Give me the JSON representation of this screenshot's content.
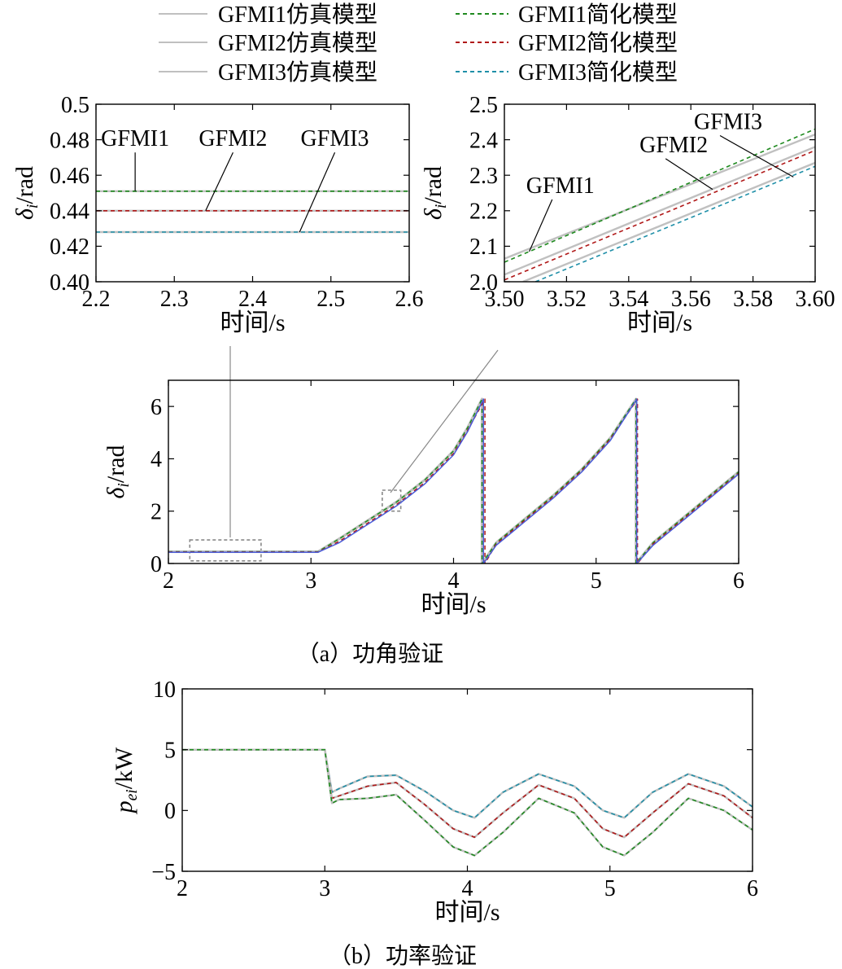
{
  "legend": [
    {
      "label": "GFMI1仿真模型",
      "style": "solid",
      "color": "#c0c0c0"
    },
    {
      "label": "GFMI1简化模型",
      "style": "dashed",
      "color": "#1f8a1f"
    },
    {
      "label": "GFMI2仿真模型",
      "style": "solid",
      "color": "#c0c0c0"
    },
    {
      "label": "GFMI2简化模型",
      "style": "dashed",
      "color": "#b01818"
    },
    {
      "label": "GFMI3仿真模型",
      "style": "solid",
      "color": "#c0c0c0"
    },
    {
      "label": "GFMI3简化模型",
      "style": "dashed",
      "color": "#1f8fa8"
    }
  ],
  "colors": {
    "sim": "#c0c0c0",
    "g1": "#1f8a1f",
    "g2": "#b01818",
    "g3": "#1f8fa8",
    "g3_main": "#4a5cd8"
  },
  "captions": {
    "a": "（a）功角验证",
    "b": "（b）功率验证"
  },
  "chart_data": [
    {
      "id": "zoom1",
      "type": "line",
      "xlabel": "时间/s",
      "ylabel_main": "δ",
      "ylabel_sub": "i",
      "ylabel_unit": "/rad",
      "xlim": [
        2.2,
        2.6
      ],
      "ylim": [
        0.4,
        0.5
      ],
      "xticks": [
        2.2,
        2.3,
        2.4,
        2.5,
        2.6
      ],
      "xtick_labels": [
        "2.2",
        "2.3",
        "2.4",
        "2.5",
        "2.6"
      ],
      "yticks": [
        0.4,
        0.42,
        0.44,
        0.46,
        0.48,
        0.5
      ],
      "ytick_labels": [
        "0.40",
        "0.42",
        "0.44",
        "0.46",
        "0.48",
        "0.5"
      ],
      "series": [
        {
          "x": [
            2.2,
            2.6
          ],
          "y": [
            0.451,
            0.451
          ],
          "color": "#c0c0c0",
          "dash": false
        },
        {
          "x": [
            2.2,
            2.6
          ],
          "y": [
            0.451,
            0.451
          ],
          "color": "#1f8a1f",
          "dash": true
        },
        {
          "x": [
            2.2,
            2.6
          ],
          "y": [
            0.44,
            0.44
          ],
          "color": "#c0c0c0",
          "dash": false
        },
        {
          "x": [
            2.2,
            2.6
          ],
          "y": [
            0.44,
            0.44
          ],
          "color": "#b01818",
          "dash": true
        },
        {
          "x": [
            2.2,
            2.6
          ],
          "y": [
            0.428,
            0.428
          ],
          "color": "#c0c0c0",
          "dash": false
        },
        {
          "x": [
            2.2,
            2.6
          ],
          "y": [
            0.428,
            0.428
          ],
          "color": "#1f8fa8",
          "dash": true
        }
      ],
      "annotations": [
        {
          "text": "GFMI1",
          "tx": 2.25,
          "ty": 0.4765,
          "ax": 2.25,
          "ay": 0.451
        },
        {
          "text": "GFMI2",
          "tx": 2.375,
          "ty": 0.4765,
          "ax": 2.34,
          "ay": 0.44
        },
        {
          "text": "GFMI3",
          "tx": 2.505,
          "ty": 0.4765,
          "ax": 2.46,
          "ay": 0.428
        }
      ]
    },
    {
      "id": "zoom2",
      "type": "line",
      "xlabel": "时间/s",
      "ylabel_main": "δ",
      "ylabel_sub": "i",
      "ylabel_unit": "/rad",
      "xlim": [
        3.5,
        3.6
      ],
      "ylim": [
        2.0,
        2.5
      ],
      "xticks": [
        3.5,
        3.52,
        3.54,
        3.56,
        3.58,
        3.6
      ],
      "xtick_labels": [
        "3.50",
        "3.52",
        "3.54",
        "3.56",
        "3.58",
        "3.60"
      ],
      "yticks": [
        2.0,
        2.1,
        2.2,
        2.3,
        2.4,
        2.5
      ],
      "ytick_labels": [
        "2.0",
        "2.1",
        "2.2",
        "2.3",
        "2.4",
        "2.5"
      ],
      "series": [
        {
          "x": [
            3.5,
            3.6
          ],
          "y": [
            2.065,
            2.415
          ],
          "color": "#c0c0c0",
          "dash": false
        },
        {
          "x": [
            3.5,
            3.6
          ],
          "y": [
            2.055,
            2.43
          ],
          "color": "#1f8a1f",
          "dash": true
        },
        {
          "x": [
            3.5,
            3.6
          ],
          "y": [
            2.02,
            2.38
          ],
          "color": "#c0c0c0",
          "dash": false
        },
        {
          "x": [
            3.5,
            3.6
          ],
          "y": [
            2.005,
            2.37
          ],
          "color": "#b01818",
          "dash": true
        },
        {
          "x": [
            3.506,
            3.6
          ],
          "y": [
            2.0,
            2.335
          ],
          "color": "#c0c0c0",
          "dash": false
        },
        {
          "x": [
            3.51,
            3.6
          ],
          "y": [
            2.0,
            2.325
          ],
          "color": "#1f8fa8",
          "dash": true
        }
      ],
      "annotations": [
        {
          "text": "GFMI1",
          "tx": 3.518,
          "ty": 2.25,
          "ax": 3.508,
          "ay": 2.085
        },
        {
          "text": "GFMI2",
          "tx": 3.5545,
          "ty": 2.365,
          "ax": 3.567,
          "ay": 2.26
        },
        {
          "text": "GFMI3",
          "tx": 3.572,
          "ty": 2.43,
          "ax": 3.593,
          "ay": 2.295
        }
      ]
    },
    {
      "id": "main_a",
      "type": "line",
      "xlabel": "时间/s",
      "ylabel_main": "δ",
      "ylabel_sub": "i",
      "ylabel_unit": "/rad",
      "xlim": [
        2,
        6
      ],
      "ylim": [
        0,
        7
      ],
      "xticks": [
        2,
        3,
        4,
        5,
        6
      ],
      "xtick_labels": [
        "2",
        "3",
        "4",
        "5",
        "6"
      ],
      "yticks": [
        0,
        2,
        4,
        6
      ],
      "ytick_labels": [
        "0",
        "2",
        "4",
        "6"
      ],
      "zoom_boxes": [
        {
          "x": [
            2.15,
            2.65
          ],
          "y": [
            0.1,
            0.9
          ]
        },
        {
          "x": [
            3.5,
            3.63
          ],
          "y": [
            2.0,
            2.8
          ]
        }
      ],
      "series": [
        {
          "x": [
            2,
            3.05,
            3.2,
            3.4,
            3.6,
            3.8,
            4.0,
            4.1,
            4.2,
            4.2,
            4.3,
            4.5,
            4.7,
            4.9,
            5.1,
            5.28,
            5.28,
            5.4,
            5.6,
            5.8,
            6.0
          ],
          "y": [
            0.45,
            0.45,
            0.95,
            1.65,
            2.35,
            3.2,
            4.3,
            5.2,
            6.28,
            0,
            0.8,
            1.7,
            2.6,
            3.6,
            4.8,
            6.28,
            0,
            0.8,
            1.7,
            2.6,
            3.5
          ],
          "color": "#c0c0c0",
          "dash": false,
          "width": 3.2
        },
        {
          "x": [
            2,
            3.05,
            3.2,
            3.4,
            3.6,
            3.8,
            4.0,
            4.1,
            4.2,
            4.2,
            4.3,
            4.5,
            4.7,
            4.9,
            5.1,
            5.28,
            5.28,
            5.4,
            5.6,
            5.8,
            6.0
          ],
          "y": [
            0.45,
            0.45,
            0.95,
            1.65,
            2.35,
            3.2,
            4.3,
            5.2,
            6.28,
            0,
            0.8,
            1.7,
            2.6,
            3.6,
            4.8,
            6.28,
            0,
            0.8,
            1.7,
            2.6,
            3.5
          ],
          "color": "#1f8a1f",
          "dash": true,
          "width": 1.5
        },
        {
          "x": [
            2,
            3.05,
            3.2,
            3.4,
            3.6,
            3.8,
            4.0,
            4.1,
            4.22,
            4.22,
            4.3,
            4.5,
            4.7,
            4.9,
            5.1,
            5.29,
            5.29,
            5.4,
            5.6,
            5.8,
            6.0
          ],
          "y": [
            0.44,
            0.44,
            0.85,
            1.55,
            2.25,
            3.1,
            4.2,
            5.1,
            6.28,
            0,
            0.75,
            1.65,
            2.55,
            3.55,
            4.75,
            6.28,
            0,
            0.75,
            1.65,
            2.55,
            3.45
          ],
          "color": "#b01818",
          "dash": true,
          "width": 1.5
        },
        {
          "x": [
            2,
            3.05,
            3.2,
            3.4,
            3.6,
            3.8,
            4.0,
            4.1,
            4.21,
            4.21,
            4.3,
            4.5,
            4.7,
            4.9,
            5.1,
            5.285,
            5.285,
            5.4,
            5.6,
            5.8,
            6.0
          ],
          "y": [
            0.43,
            0.43,
            0.8,
            1.5,
            2.2,
            3.05,
            4.15,
            5.05,
            6.28,
            0,
            0.7,
            1.6,
            2.5,
            3.5,
            4.7,
            6.28,
            0,
            0.7,
            1.6,
            2.5,
            3.42
          ],
          "color": "#4a5cd8",
          "dash": false,
          "width": 1.5
        }
      ]
    },
    {
      "id": "main_b",
      "type": "line",
      "xlabel": "时间/s",
      "ylabel_main": "p",
      "ylabel_sub": "ei",
      "ylabel_unit": "/kW",
      "xlim": [
        2,
        6
      ],
      "ylim": [
        -5,
        10
      ],
      "xticks": [
        2,
        3,
        4,
        5,
        6
      ],
      "xtick_labels": [
        "2",
        "3",
        "4",
        "5",
        "6"
      ],
      "yticks": [
        -5,
        0,
        5,
        10
      ],
      "ytick_labels": [
        "−5",
        "0",
        "5",
        "10"
      ],
      "series": [
        {
          "x": [
            2,
            3.0,
            3.05,
            3.1,
            3.3,
            3.5,
            3.7,
            3.9,
            4.05,
            4.25,
            4.5,
            4.75,
            4.95,
            5.1,
            5.3,
            5.55,
            5.8,
            6.0
          ],
          "y": [
            5,
            5,
            1.5,
            1.8,
            2.8,
            2.9,
            1.6,
            0,
            -0.6,
            1.5,
            3.0,
            2.0,
            0,
            -0.6,
            1.5,
            3.0,
            2.0,
            0.3
          ],
          "color": "#c0c0c0",
          "dash": false
        },
        {
          "x": [
            2,
            3.0,
            3.05,
            3.1,
            3.3,
            3.5,
            3.7,
            3.9,
            4.05,
            4.25,
            4.5,
            4.75,
            4.95,
            5.1,
            5.3,
            5.55,
            5.8,
            6.0
          ],
          "y": [
            5,
            5,
            1.5,
            1.8,
            2.8,
            2.9,
            1.6,
            0,
            -0.6,
            1.5,
            3.0,
            2.0,
            0,
            -0.6,
            1.5,
            3.0,
            2.0,
            0.3
          ],
          "color": "#1f8fa8",
          "dash": true
        },
        {
          "x": [
            2,
            3.0,
            3.05,
            3.1,
            3.3,
            3.5,
            3.7,
            3.9,
            4.05,
            4.25,
            4.5,
            4.75,
            4.95,
            5.1,
            5.3,
            5.55,
            5.8,
            6.0
          ],
          "y": [
            5,
            5,
            1.0,
            1.2,
            2.0,
            2.3,
            0.5,
            -1.5,
            -2.2,
            -0.2,
            2.1,
            1.0,
            -1.5,
            -2.2,
            -0.2,
            2.2,
            1.2,
            -0.6
          ],
          "color": "#c0c0c0",
          "dash": false
        },
        {
          "x": [
            2,
            3.0,
            3.05,
            3.1,
            3.3,
            3.5,
            3.7,
            3.9,
            4.05,
            4.25,
            4.5,
            4.75,
            4.95,
            5.1,
            5.3,
            5.55,
            5.8,
            6.0
          ],
          "y": [
            5,
            5,
            1.0,
            1.2,
            2.0,
            2.3,
            0.5,
            -1.5,
            -2.2,
            -0.2,
            2.1,
            1.0,
            -1.5,
            -2.2,
            -0.2,
            2.2,
            1.2,
            -0.6
          ],
          "color": "#b01818",
          "dash": true
        },
        {
          "x": [
            2,
            3.0,
            3.05,
            3.1,
            3.3,
            3.5,
            3.7,
            3.9,
            4.05,
            4.25,
            4.5,
            4.75,
            4.95,
            5.1,
            5.3,
            5.55,
            5.8,
            6.0
          ],
          "y": [
            5,
            5,
            0.6,
            0.9,
            1.0,
            1.3,
            -0.8,
            -3.0,
            -3.7,
            -1.8,
            1.0,
            -0.2,
            -3.0,
            -3.7,
            -1.8,
            1.0,
            0.0,
            -1.6
          ],
          "color": "#c0c0c0",
          "dash": false
        },
        {
          "x": [
            2,
            3.0,
            3.05,
            3.1,
            3.3,
            3.5,
            3.7,
            3.9,
            4.05,
            4.25,
            4.5,
            4.75,
            4.95,
            5.1,
            5.3,
            5.55,
            5.8,
            6.0
          ],
          "y": [
            5,
            5,
            0.6,
            0.9,
            1.0,
            1.3,
            -0.8,
            -3.0,
            -3.7,
            -1.8,
            1.0,
            -0.2,
            -3.0,
            -3.7,
            -1.8,
            1.0,
            0.0,
            -1.6
          ],
          "color": "#1f8a1f",
          "dash": true
        }
      ]
    }
  ]
}
